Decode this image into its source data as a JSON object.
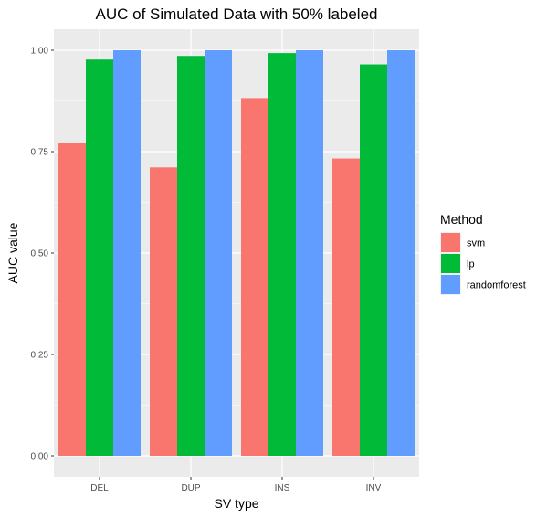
{
  "chart_data": {
    "type": "bar",
    "title": "AUC of Simulated Data with 50% labeled",
    "xlabel": "SV type",
    "ylabel": "AUC value",
    "categories": [
      "DEL",
      "DUP",
      "INS",
      "INV"
    ],
    "ylim": [
      0,
      1.0
    ],
    "yticks": [
      0.0,
      0.25,
      0.5,
      0.75,
      1.0
    ],
    "ytick_labels": [
      "0.00",
      "0.25",
      "0.50",
      "0.75",
      "1.00"
    ],
    "grid": true,
    "legend": {
      "title": "Method",
      "position": "right"
    },
    "series": [
      {
        "name": "svm",
        "color": "#F8766D",
        "values": [
          0.772,
          0.711,
          0.882,
          0.733
        ]
      },
      {
        "name": "lp",
        "color": "#00BA38",
        "values": [
          0.977,
          0.986,
          0.993,
          0.965
        ]
      },
      {
        "name": "randomforest",
        "color": "#619CFF",
        "values": [
          1.0,
          1.0,
          1.0,
          1.0
        ]
      }
    ]
  }
}
